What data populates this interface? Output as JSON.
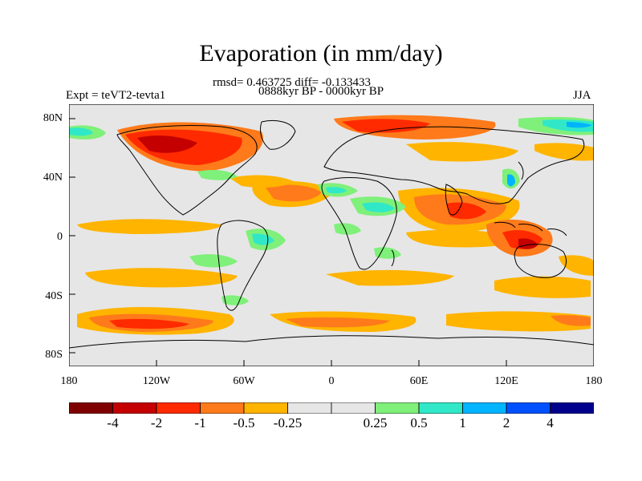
{
  "title": "Evaporation (in mm/day)",
  "subtitle_line1": "rmsd= 0.463725 diff= -0.133433",
  "subtitle_line2": "0888kyr BP - 0000kyr BP",
  "left_label": "Expt = teVT2-tevta1",
  "right_label": "JJA",
  "map": {
    "lon_range": [
      -180,
      180
    ],
    "lat_range": [
      -90,
      90
    ],
    "background_color": "#e6e6e6",
    "y_ticks": [
      "80N",
      "40N",
      "0",
      "40S",
      "80S"
    ],
    "x_ticks": [
      "180",
      "120W",
      "60W",
      "0",
      "60E",
      "120E",
      "180"
    ]
  },
  "colorbar": {
    "colors": [
      "#7f0000",
      "#c40000",
      "#ff2a00",
      "#ff7a1a",
      "#ffb400",
      "#e6e6e6",
      "#e6e6e6",
      "#7ff07a",
      "#30e8c8",
      "#00b4ff",
      "#0050ff",
      "#00008c"
    ],
    "labels": [
      "-4",
      "-2",
      "-1",
      "-0.5",
      "-0.25",
      "0.25",
      "0.5",
      "1",
      "2",
      "4"
    ]
  }
}
